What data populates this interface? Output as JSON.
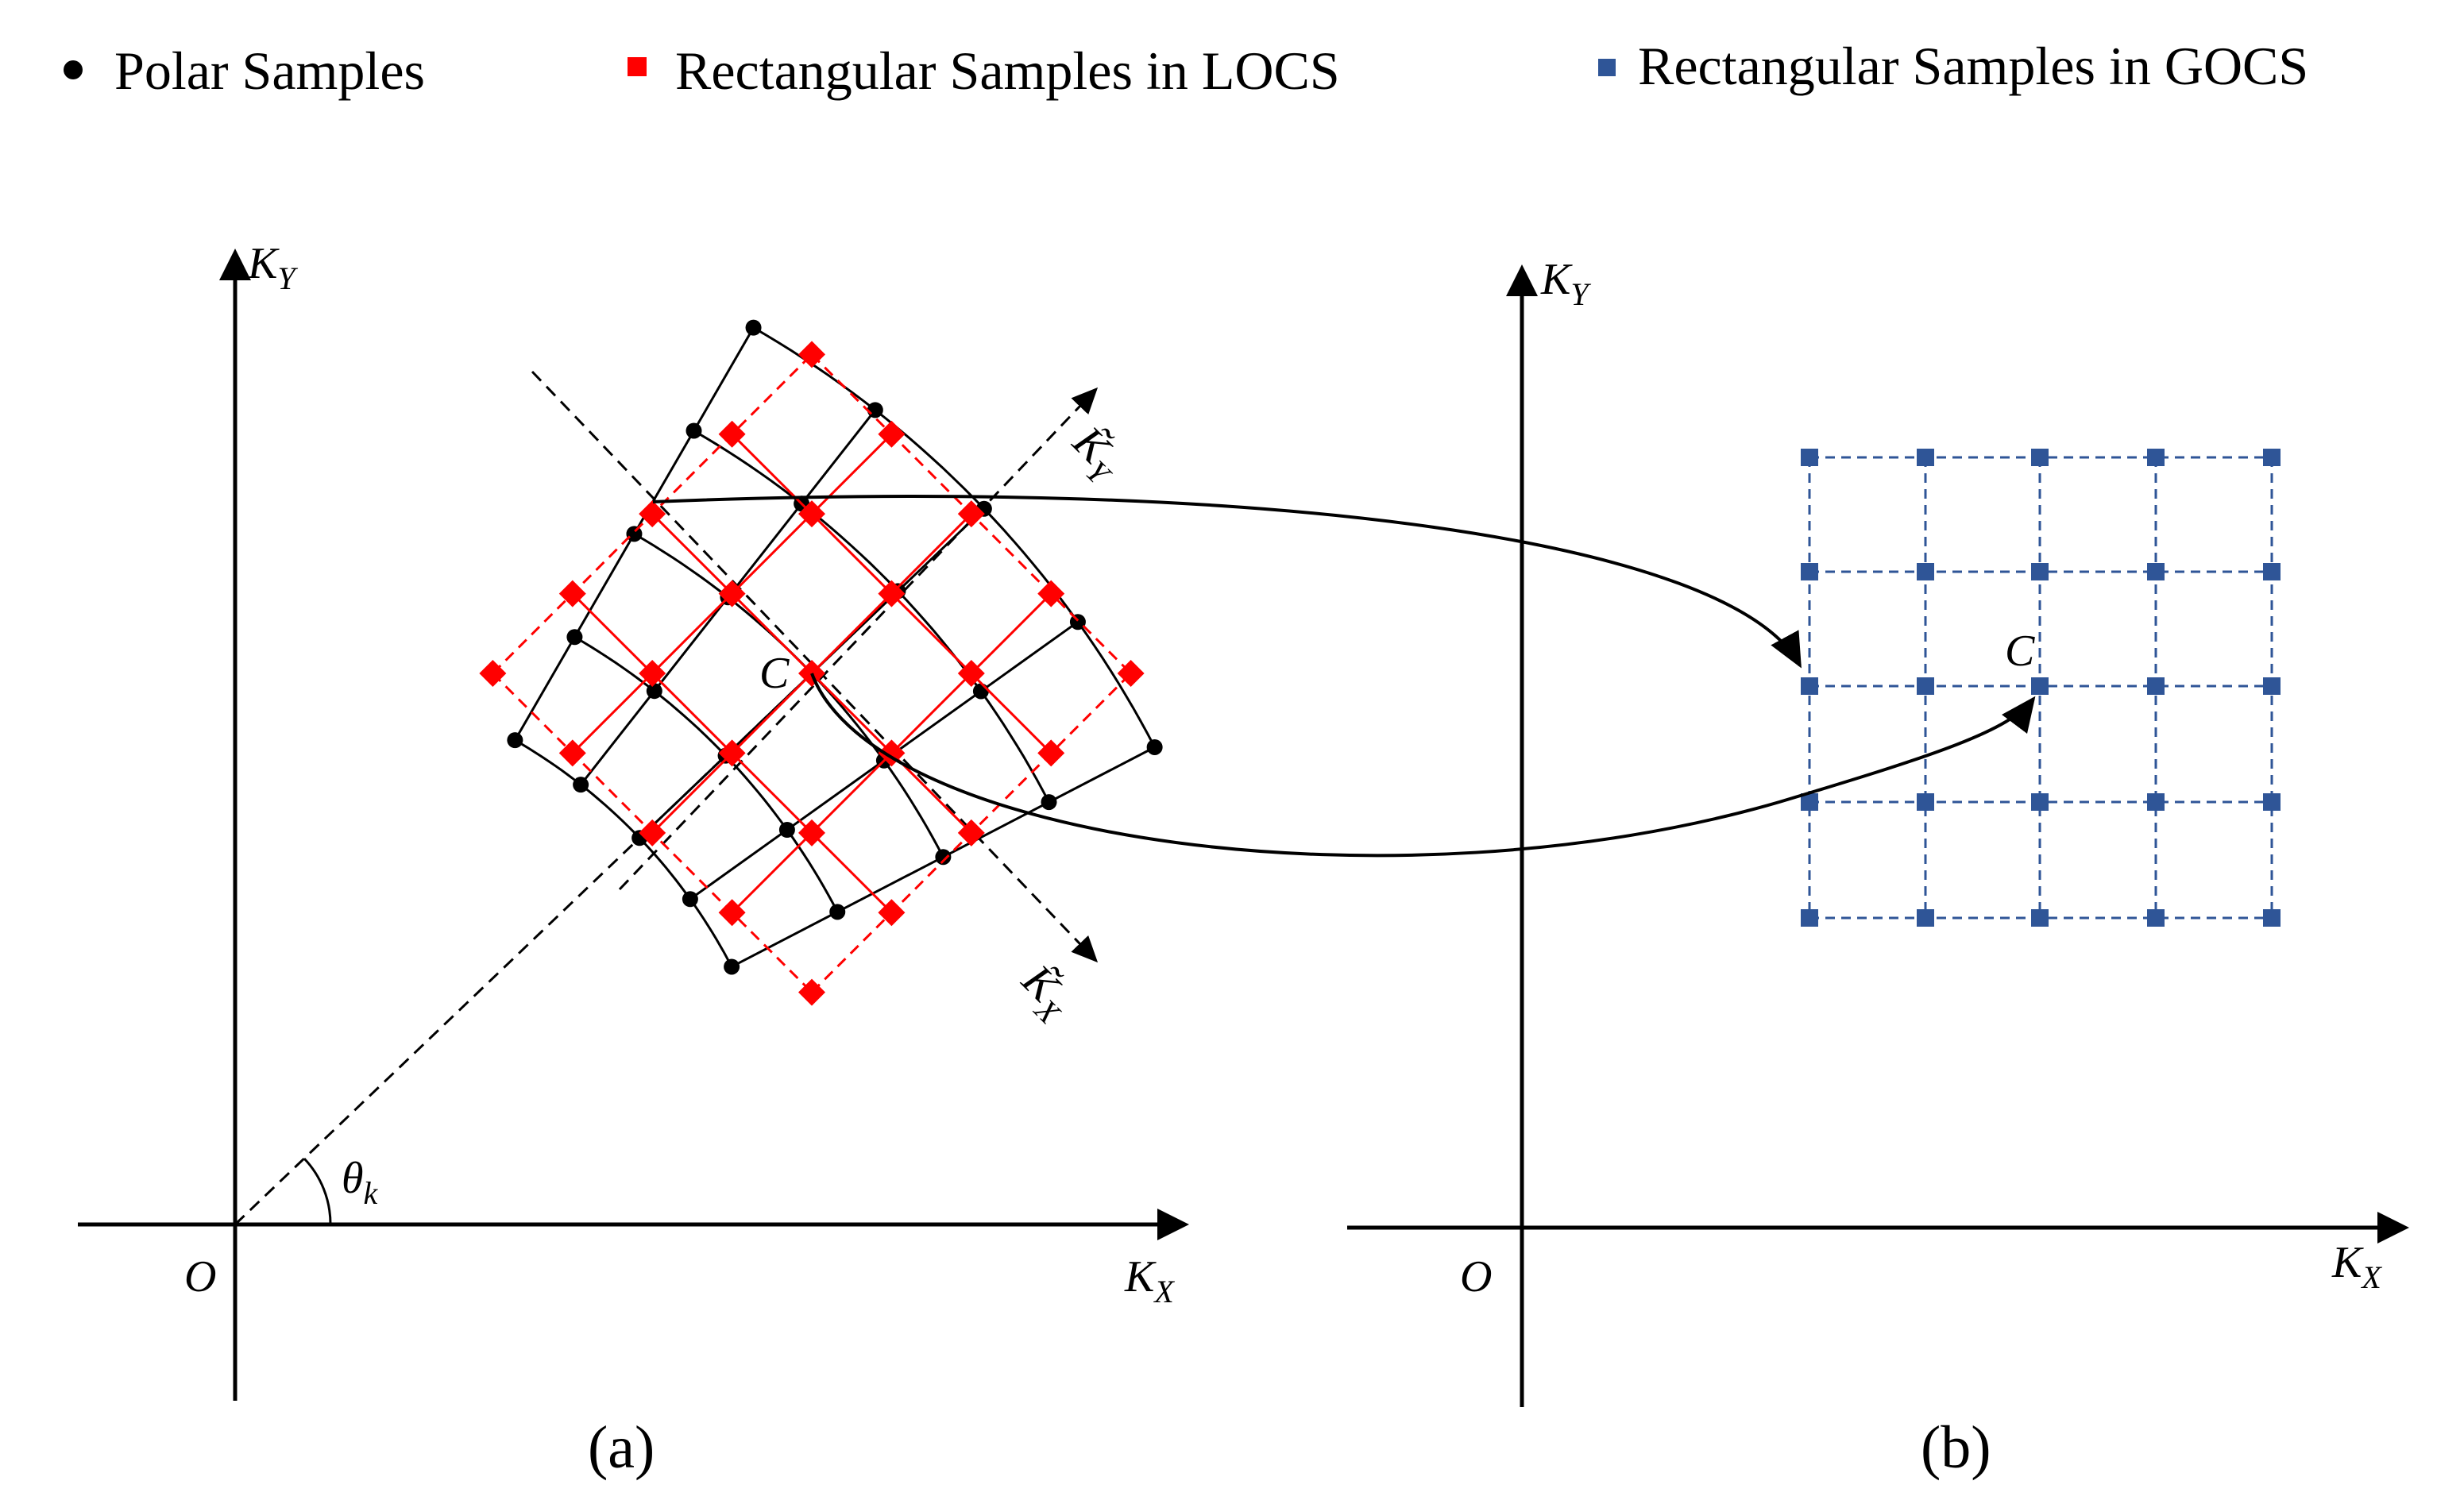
{
  "legend": {
    "polar": "Polar Samples",
    "locs": "Rectangular Samples in LOCS",
    "gocs": "Rectangular Samples in GOCS"
  },
  "panel_a": {
    "caption": "(a)",
    "origin_label": "O",
    "kx_main": "K",
    "kx_sub": "X",
    "ky_main": "K",
    "ky_sub": "Y",
    "local_kx_main": "K̃",
    "local_kx_sub": "X",
    "local_ky_main": "K̃",
    "local_ky_sub": "Y",
    "center_label": "C",
    "theta_main": "θ",
    "theta_sub": "k"
  },
  "panel_b": {
    "caption": "(b)",
    "origin_label": "O",
    "kx_main": "K",
    "kx_sub": "X",
    "ky_main": "K",
    "ky_sub": "Y",
    "center_label": "C"
  },
  "colors": {
    "polar": "#000000",
    "locs": "#ff0000",
    "gocs": "#2f5597",
    "axis": "#000000"
  }
}
